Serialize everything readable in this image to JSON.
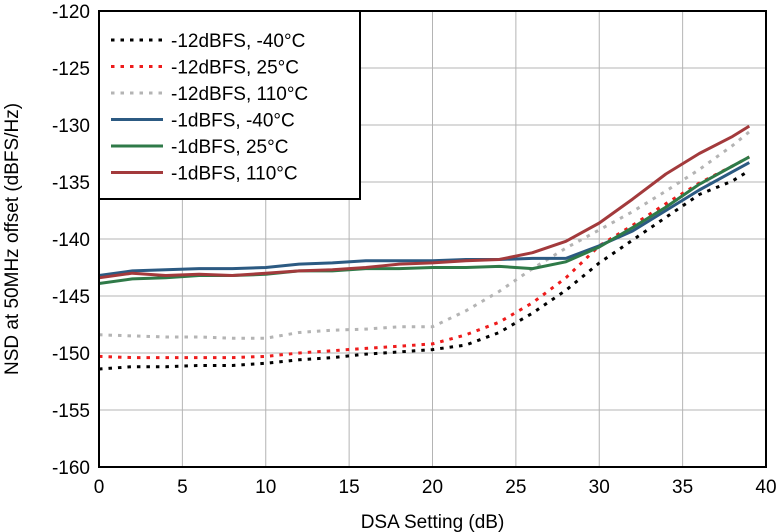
{
  "chart_data": {
    "type": "line",
    "xlabel": "DSA Setting (dB)",
    "ylabel": "NSD at 50MHz offset (dBFS/Hz)",
    "xlim": [
      0,
      40
    ],
    "ylim": [
      -160,
      -120
    ],
    "xticks": [
      0,
      5,
      10,
      15,
      20,
      25,
      30,
      35,
      40
    ],
    "yticks": [
      -120,
      -125,
      -130,
      -135,
      -140,
      -145,
      -150,
      -155,
      -160
    ],
    "grid": true,
    "legend_position": "top-left",
    "series": [
      {
        "name": "-12dBFS, -40°C",
        "color": "#000000",
        "dash": "dotted",
        "x": [
          0,
          2,
          4,
          6,
          8,
          10,
          12,
          14,
          16,
          18,
          20,
          22,
          24,
          26,
          28,
          30,
          32,
          34,
          36,
          38,
          39
        ],
        "y": [
          -151.4,
          -151.2,
          -151.2,
          -151.1,
          -151.1,
          -150.9,
          -150.6,
          -150.4,
          -150.1,
          -149.9,
          -149.7,
          -149.3,
          -148.2,
          -146.5,
          -144.5,
          -142.1,
          -140.1,
          -138.1,
          -136.1,
          -134.9,
          -134.0
        ]
      },
      {
        "name": "-12dBFS, 25°C",
        "color": "#ee1c1c",
        "dash": "dotted",
        "x": [
          0,
          2,
          4,
          6,
          8,
          10,
          12,
          14,
          16,
          18,
          20,
          22,
          24,
          26,
          28,
          30,
          32,
          34,
          36,
          38,
          39
        ],
        "y": [
          -150.3,
          -150.4,
          -150.4,
          -150.4,
          -150.4,
          -150.3,
          -150.0,
          -149.8,
          -149.6,
          -149.4,
          -149.2,
          -148.4,
          -147.3,
          -145.6,
          -143.4,
          -140.6,
          -138.8,
          -136.9,
          -135.1,
          -133.6,
          -132.8
        ]
      },
      {
        "name": "-12dBFS, 110°C",
        "color": "#b4b4b4",
        "dash": "dotted",
        "x": [
          0,
          2,
          4,
          6,
          8,
          10,
          12,
          14,
          16,
          18,
          20,
          22,
          24,
          26,
          28,
          30,
          32,
          34,
          36,
          38,
          39
        ],
        "y": [
          -148.4,
          -148.5,
          -148.6,
          -148.6,
          -148.7,
          -148.7,
          -148.2,
          -148.0,
          -147.9,
          -147.7,
          -147.7,
          -146.3,
          -144.6,
          -142.6,
          -140.8,
          -139.2,
          -137.6,
          -135.8,
          -133.9,
          -131.8,
          -130.6
        ]
      },
      {
        "name": "-1dBFS, -40°C",
        "color": "#2c5a82",
        "dash": "solid",
        "x": [
          0,
          2,
          4,
          6,
          8,
          10,
          12,
          14,
          16,
          18,
          20,
          22,
          24,
          26,
          28,
          30,
          32,
          34,
          36,
          38,
          39
        ],
        "y": [
          -143.2,
          -142.8,
          -142.7,
          -142.6,
          -142.6,
          -142.5,
          -142.2,
          -142.1,
          -141.9,
          -141.9,
          -141.9,
          -141.8,
          -141.8,
          -141.7,
          -141.7,
          -140.6,
          -139.3,
          -137.5,
          -135.7,
          -134.1,
          -133.3
        ]
      },
      {
        "name": "-1dBFS, 25°C",
        "color": "#2f7a48",
        "dash": "solid",
        "x": [
          0,
          2,
          4,
          6,
          8,
          10,
          12,
          14,
          16,
          18,
          20,
          22,
          24,
          26,
          28,
          30,
          32,
          34,
          36,
          38,
          39
        ],
        "y": [
          -143.9,
          -143.5,
          -143.4,
          -143.2,
          -143.2,
          -143.1,
          -142.8,
          -142.8,
          -142.6,
          -142.6,
          -142.5,
          -142.5,
          -142.4,
          -142.6,
          -142.0,
          -140.7,
          -139.0,
          -137.2,
          -135.2,
          -133.6,
          -132.8
        ]
      },
      {
        "name": "-1dBFS, 110°C",
        "color": "#a33a3c",
        "dash": "solid",
        "x": [
          0,
          2,
          4,
          6,
          8,
          10,
          12,
          14,
          16,
          18,
          20,
          22,
          24,
          26,
          28,
          30,
          32,
          34,
          36,
          38,
          39
        ],
        "y": [
          -143.4,
          -143.0,
          -143.2,
          -143.1,
          -143.2,
          -143.0,
          -142.8,
          -142.7,
          -142.5,
          -142.2,
          -142.1,
          -141.9,
          -141.8,
          -141.2,
          -140.2,
          -138.6,
          -136.5,
          -134.3,
          -132.5,
          -131.0,
          -130.1
        ]
      }
    ]
  }
}
